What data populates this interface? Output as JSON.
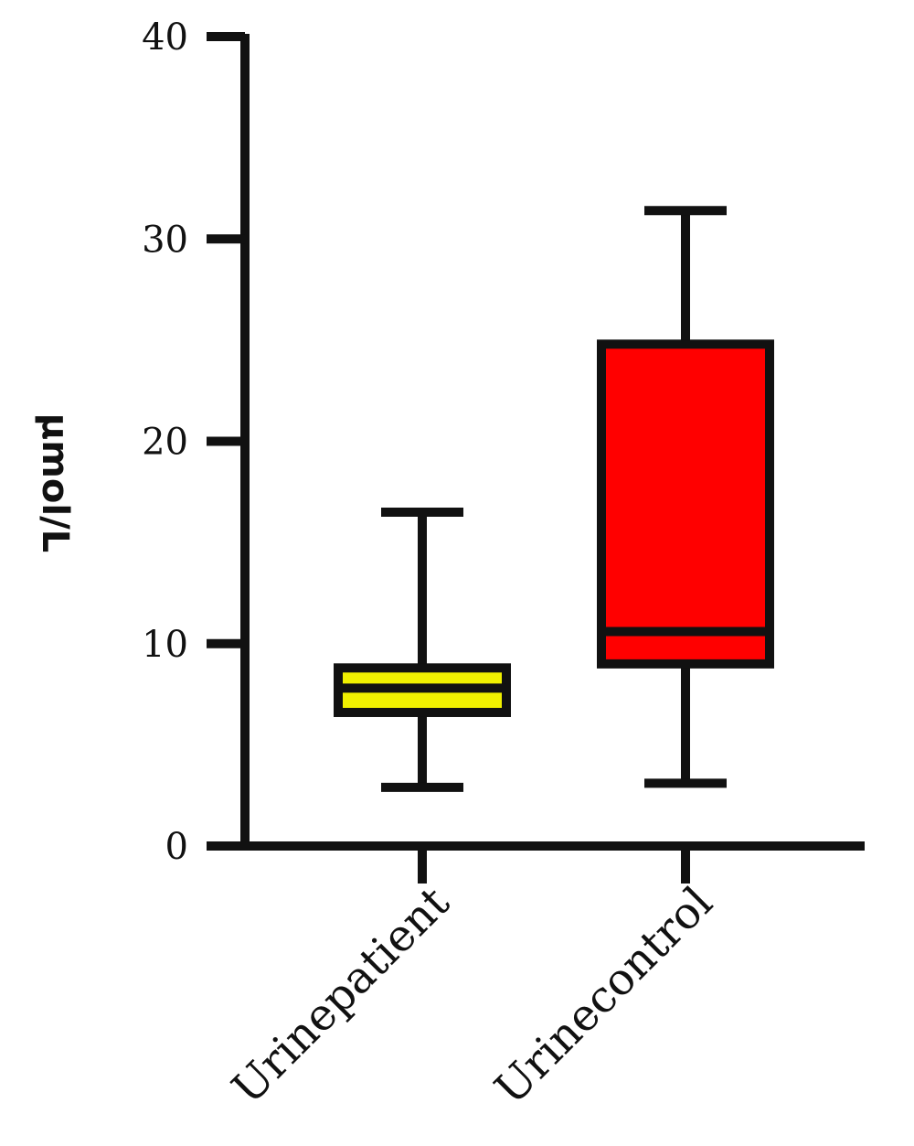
{
  "chart_data": {
    "type": "box",
    "title": "",
    "xlabel": "",
    "ylabel": "µmol/L",
    "ylim": [
      0,
      40
    ],
    "yticks": [
      0,
      10,
      20,
      30,
      40
    ],
    "grid": false,
    "categories": [
      "Urinepatient",
      "Urinecontrol"
    ],
    "boxes": [
      {
        "category": "Urinepatient",
        "min": 2.9,
        "q1": 6.6,
        "median": 7.8,
        "q3": 8.8,
        "max": 16.5,
        "color": "#f0f000"
      },
      {
        "category": "Urinecontrol",
        "min": 3.1,
        "q1": 9.0,
        "median": 10.6,
        "q3": 24.8,
        "max": 31.4,
        "color": "#ff0000"
      }
    ],
    "colors": {
      "axis": "#111111",
      "outline": "#111111"
    }
  }
}
